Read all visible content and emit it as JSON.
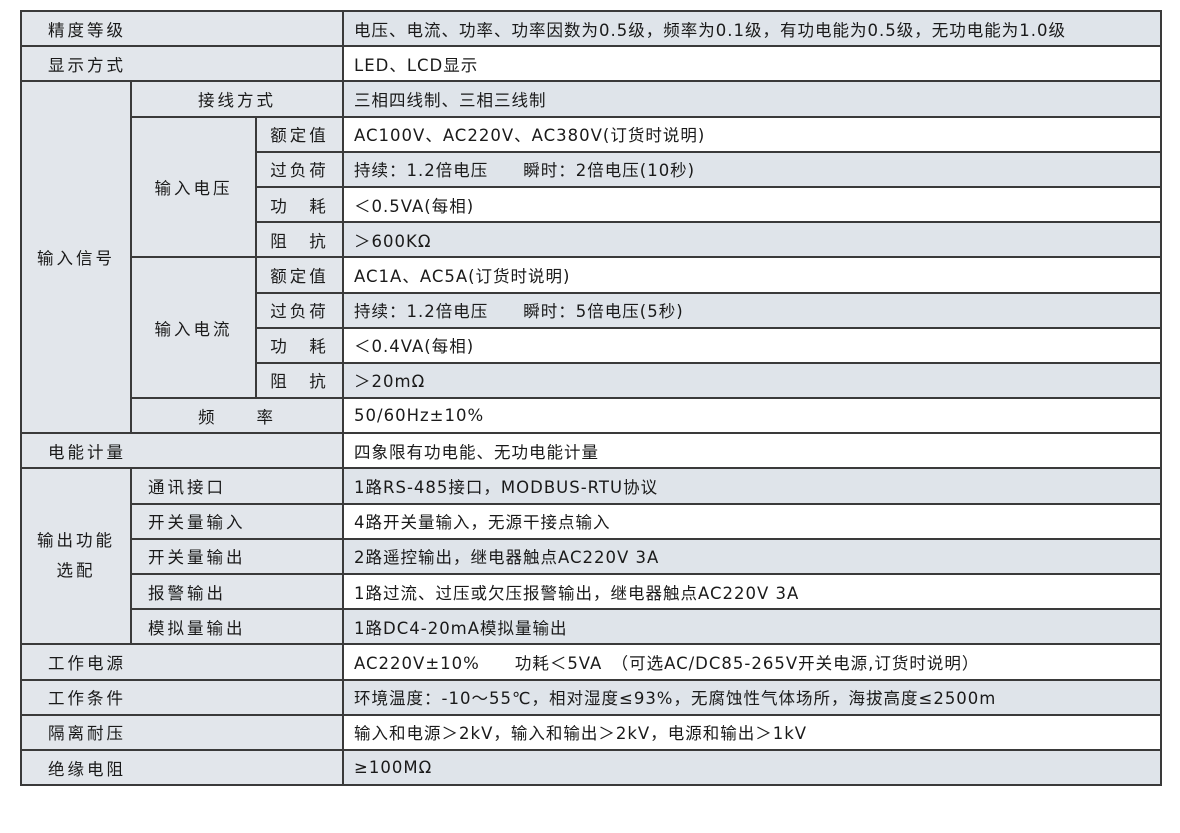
{
  "labels": {
    "precision": "精度等级",
    "display": "显示方式",
    "input_signal": "输入信号",
    "wiring": "接线方式",
    "input_voltage": "输入电压",
    "input_current": "输入电流",
    "rated": "额定值",
    "overload": "过负荷",
    "power": "功　耗",
    "impedance": "阻　抗",
    "frequency": "频　　率",
    "energy": "电能计量",
    "output_line1": "输出功能",
    "output_line2": "选配",
    "comm": "通讯接口",
    "digital_input": "开关量输入",
    "digital_output": "开关量输出",
    "alarm": "报警输出",
    "analog": "模拟量输出",
    "supply": "工作电源",
    "conditions": "工作条件",
    "isolation": "隔离耐压",
    "insulation": "绝缘电阻"
  },
  "values": {
    "precision": "电压、电流、功率、功率因数为0.5级，频率为0.1级，有功电能为0.5级，无功电能为1.0级",
    "display": "LED、LCD显示",
    "wiring": "三相四线制、三相三线制",
    "voltage_rated": "AC100V、AC220V、AC380V(订货时说明)",
    "voltage_overload": "持续：1.2倍电压　　瞬时：2倍电压(10秒)",
    "voltage_power": "＜0.5VA(每相)",
    "voltage_impedance": "＞600KΩ",
    "current_rated": "AC1A、AC5A(订货时说明)",
    "current_overload": "持续：1.2倍电压　　瞬时：5倍电压(5秒)",
    "current_power": "＜0.4VA(每相)",
    "current_impedance": "＞20mΩ",
    "frequency": "50/60Hz±10%",
    "energy": "四象限有功电能、无功电能计量",
    "comm": "1路RS-485接口，MODBUS-RTU协议",
    "digital_input": "4路开关量输入，无源干接点输入",
    "digital_output": "2路遥控输出，继电器触点AC220V 3A",
    "alarm": "1路过流、过压或欠压报警输出，继电器触点AC220V 3A",
    "analog": "1路DC4-20mA模拟量输出",
    "supply": "AC220V±10%　　功耗＜5VA　（可选AC/DC85-265V开关电源,订货时说明）",
    "conditions": "环境温度：-10～55℃，相对湿度≤93%，无腐蚀性气体场所，海拔高度≤2500m",
    "isolation": "输入和电源＞2kV，输入和输出＞2kV，电源和输出＞1kV",
    "insulation": "≥100MΩ"
  }
}
